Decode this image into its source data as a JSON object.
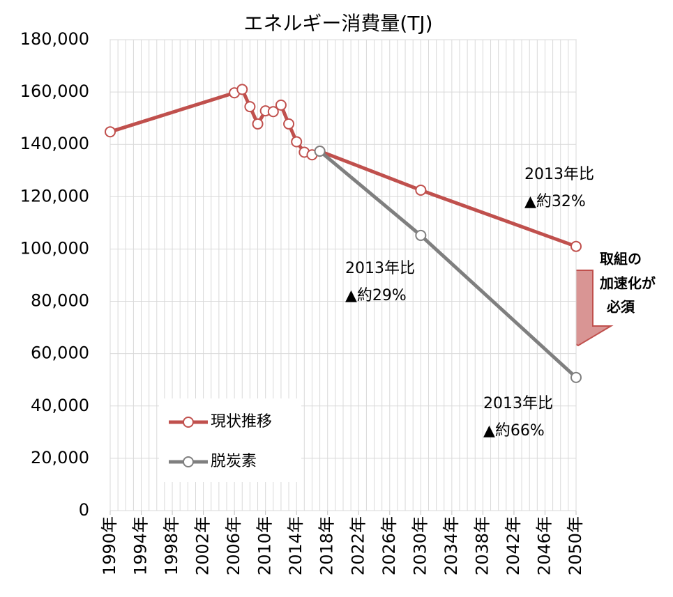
{
  "chart_data": {
    "type": "line",
    "title": "エネルギー消費量(TJ)",
    "xlim": [
      1990,
      2050
    ],
    "xticks": [
      {
        "value": 1990,
        "label": "1990年"
      },
      {
        "value": 1994,
        "label": "1994年"
      },
      {
        "value": 1998,
        "label": "1998年"
      },
      {
        "value": 2002,
        "label": "2002年"
      },
      {
        "value": 2006,
        "label": "2006年"
      },
      {
        "value": 2010,
        "label": "2010年"
      },
      {
        "value": 2014,
        "label": "2014年"
      },
      {
        "value": 2018,
        "label": "2018年"
      },
      {
        "value": 2022,
        "label": "2022年"
      },
      {
        "value": 2026,
        "label": "2026年"
      },
      {
        "value": 2030,
        "label": "2030年"
      },
      {
        "value": 2034,
        "label": "2034年"
      },
      {
        "value": 2038,
        "label": "2038年"
      },
      {
        "value": 2042,
        "label": "2042年"
      },
      {
        "value": 2046,
        "label": "2046年"
      },
      {
        "value": 2050,
        "label": "2050年"
      }
    ],
    "x_minor_step": 1,
    "ylim": [
      0,
      180000
    ],
    "yticks": [
      0,
      {
        "value": 20000,
        "label": "20,000"
      },
      {
        "value": 40000,
        "label": "40,000"
      },
      {
        "value": 60000,
        "label": "60,000"
      },
      {
        "value": 80000,
        "label": "80,000"
      },
      {
        "value": 100000,
        "label": "100,000"
      },
      {
        "value": 120000,
        "label": "120,000"
      },
      {
        "value": 140000,
        "label": "140,000"
      },
      {
        "value": 160000,
        "label": "160,000"
      },
      {
        "value": 180000,
        "label": "180,000"
      }
    ],
    "grid": true,
    "legend": "lower left",
    "series": [
      {
        "name": "現状推移",
        "color": "#c0504d",
        "x": [
          1990,
          2006,
          2007,
          2008,
          2009,
          2010,
          2011,
          2012,
          2013,
          2014,
          2015,
          2016,
          2017,
          2030,
          2050
        ],
        "values": [
          144800,
          159700,
          161000,
          154400,
          147800,
          152800,
          152500,
          155000,
          147800,
          141000,
          137000,
          136000,
          137400,
          122500,
          101000
        ]
      },
      {
        "name": "脱炭素",
        "color": "#7f7f7f",
        "x": [
          2017,
          2030,
          2050
        ],
        "values": [
          137400,
          105200,
          50900
        ]
      }
    ],
    "annotations": [
      "2013年比",
      "▲約32%",
      "2013年比",
      "▲約29%",
      "2013年比",
      "▲約66%",
      "取組の",
      "加速化が",
      "必須"
    ]
  }
}
